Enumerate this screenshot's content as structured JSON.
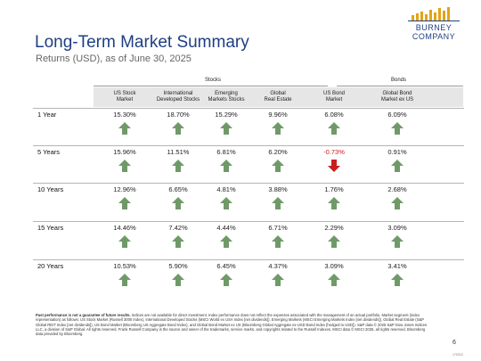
{
  "header": {
    "title": "Long-Term Market Summary",
    "subtitle": "Returns (USD), as of June 30, 2025"
  },
  "logo": {
    "line1": "BURNEY",
    "line2": "COMPANY",
    "bar_color": "#e3a317"
  },
  "groups": {
    "stocks": "Stocks",
    "bonds": "Bonds"
  },
  "columns": [
    {
      "line1": "US Stock",
      "line2": "Market"
    },
    {
      "line1": "International",
      "line2": "Developed Stocks"
    },
    {
      "line1": "Emerging",
      "line2": "Markets Stocks"
    },
    {
      "line1": "Global",
      "line2": "Real Estate"
    },
    {
      "line1": "US Bond",
      "line2": "Market"
    },
    {
      "line1": "Global Bond",
      "line2": "Market ex US"
    }
  ],
  "rows": [
    {
      "label": "1 Year",
      "values": [
        "15.30%",
        "18.70%",
        "15.29%",
        "9.96%",
        "6.08%",
        "6.09%"
      ],
      "directions": [
        "up",
        "up",
        "up",
        "up",
        "up",
        "up"
      ]
    },
    {
      "label": "5 Years",
      "values": [
        "15.96%",
        "11.51%",
        "6.81%",
        "6.20%",
        "-0.73%",
        "0.91%"
      ],
      "directions": [
        "up",
        "up",
        "up",
        "up",
        "down",
        "up"
      ]
    },
    {
      "label": "10 Years",
      "values": [
        "12.96%",
        "6.65%",
        "4.81%",
        "3.88%",
        "1.76%",
        "2.68%"
      ],
      "directions": [
        "up",
        "up",
        "up",
        "up",
        "up",
        "up"
      ]
    },
    {
      "label": "15 Years",
      "values": [
        "14.46%",
        "7.42%",
        "4.44%",
        "6.71%",
        "2.29%",
        "3.09%"
      ],
      "directions": [
        "up",
        "up",
        "up",
        "up",
        "up",
        "up"
      ]
    },
    {
      "label": "20 Years",
      "values": [
        "10.53%",
        "5.90%",
        "6.45%",
        "4.37%",
        "3.09%",
        "3.41%"
      ],
      "directions": [
        "up",
        "up",
        "up",
        "up",
        "up",
        "up"
      ]
    }
  ],
  "colors": {
    "up": "#6f9a68",
    "down": "#c8201e",
    "title": "#1f3f82",
    "negative_text": "#c8201e"
  },
  "footnote": {
    "bold": "Past performance is not a guarantee of future results.",
    "text": " Indices are not available for direct investment. Index performance does not reflect the expenses associated with the management of an actual portfolio. Market segment (index representation) as follows: US Stock Market (Russell 3000 Index), International Developed Stocks (MSCI World ex USA Index [net dividends]), Emerging Markets (MSCI Emerging Markets Index [net dividends]), Global Real Estate (S&P Global REIT Index [net dividends]), US Bond Market (Bloomberg US Aggregate Bond Index), and Global Bond Market ex US (Bloomberg Global Aggregate ex-USD Bond Index [hedged to USD]). S&P data © 2025 S&P Dow Jones Indices LLC, a division of S&P Global. All rights reserved. Frank Russell Company is the source and owner of the trademarks, service marks, and copyrights related to the Russell Indexes. MSCI data © MSCI 2025, all rights reserved. Bloomberg data provided by Bloomberg."
  },
  "page_number": "6",
  "doc_code": "170312"
}
